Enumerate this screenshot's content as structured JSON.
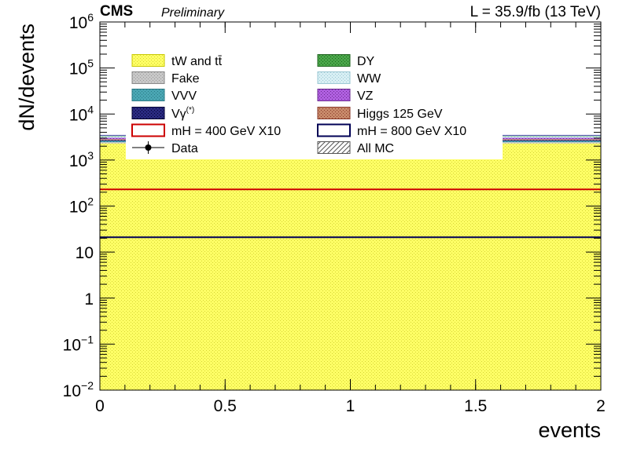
{
  "header": {
    "experiment": "CMS",
    "status": "Preliminary",
    "lumi": "L = 35.9/fb (13 TeV)"
  },
  "chart_data": {
    "type": "area",
    "title": "",
    "xlabel": "events",
    "ylabel": "dN/devents",
    "xlim": [
      0,
      2
    ],
    "ylim": [
      0.01,
      1000000
    ],
    "yscale": "log",
    "grid": false,
    "legend_placement": "top-left",
    "x_ticks": [
      {
        "value": 0,
        "label": "0"
      },
      {
        "value": 0.5,
        "label": "0.5"
      },
      {
        "value": 1,
        "label": "1"
      },
      {
        "value": 1.5,
        "label": "1.5"
      },
      {
        "value": 2,
        "label": "2"
      }
    ],
    "y_ticks": [
      {
        "value": 0.01,
        "base": "10",
        "exp": "−2"
      },
      {
        "value": 0.1,
        "base": "10",
        "exp": "−1"
      },
      {
        "value": 1,
        "base": "1",
        "exp": ""
      },
      {
        "value": 10,
        "base": "10",
        "exp": ""
      },
      {
        "value": 100,
        "base": "10",
        "exp": "2"
      },
      {
        "value": 1000,
        "base": "10",
        "exp": "3"
      },
      {
        "value": 10000,
        "base": "10",
        "exp": "4"
      },
      {
        "value": 100000,
        "base": "10",
        "exp": "5"
      },
      {
        "value": 1000000,
        "base": "10",
        "exp": "6"
      }
    ],
    "stack": [
      {
        "name": "tW and tt̄",
        "color": "#ffff66",
        "lower": 0.01,
        "upper": 2300
      },
      {
        "name": "Fake",
        "color": "#bbbbbb",
        "lower": 2300,
        "upper": 2450
      },
      {
        "name": "VVV",
        "color": "#4aa6b3",
        "lower": 2450,
        "upper": 2600
      },
      {
        "name": "Vγ(*)",
        "color": "#1a1a66",
        "lower": 2600,
        "upper": 2720
      },
      {
        "name": "Higgs 125 GeV",
        "color": "#c07a5a",
        "lower": 2720,
        "upper": 2850
      },
      {
        "name": "VZ",
        "color": "#a050d0",
        "lower": 2850,
        "upper": 3050
      },
      {
        "name": "WW",
        "color": "#cfeaf0",
        "lower": 3050,
        "upper": 3300
      },
      {
        "name": "DY",
        "color": "#3a9a3a",
        "lower": 3300,
        "upper": 3450
      }
    ],
    "signal_lines": [
      {
        "name": "mH = 400 GeV X10",
        "color": "#cc0000",
        "value": 230
      },
      {
        "name": "mH = 800 GeV X10",
        "color": "#000055",
        "value": 21
      }
    ],
    "legend": [
      {
        "label": "tW and tt̄",
        "kind": "fill",
        "color": "#ffff66",
        "border": "#c8c800"
      },
      {
        "label": "DY",
        "kind": "fill",
        "color": "#3a9a3a",
        "border": "#226622"
      },
      {
        "label": "Fake",
        "kind": "fill",
        "color": "#c0c0c0",
        "border": "#888888"
      },
      {
        "label": "WW",
        "kind": "fill",
        "color": "#cfeaf0",
        "border": "#9cc8d4"
      },
      {
        "label": "VVV",
        "kind": "fill",
        "color": "#4aa6b3",
        "border": "#2a7a86"
      },
      {
        "label": "VZ",
        "kind": "fill",
        "color": "#a050d0",
        "border": "#6a2a90"
      },
      {
        "label": "Vγ",
        "label_sup": "(*)",
        "kind": "fill",
        "color": "#1a1a66",
        "border": "#000033"
      },
      {
        "label": "Higgs 125 GeV",
        "kind": "fill",
        "color": "#c07a5a",
        "border": "#8a3a2a"
      },
      {
        "label": "mH = 400 GeV X10",
        "kind": "line",
        "color": "#cc0000"
      },
      {
        "label": "mH = 800 GeV X10",
        "kind": "line",
        "color": "#000055"
      },
      {
        "label": "Data",
        "kind": "marker",
        "color": "#000000"
      },
      {
        "label": "All MC",
        "kind": "hatch",
        "color": "#555555"
      }
    ]
  }
}
